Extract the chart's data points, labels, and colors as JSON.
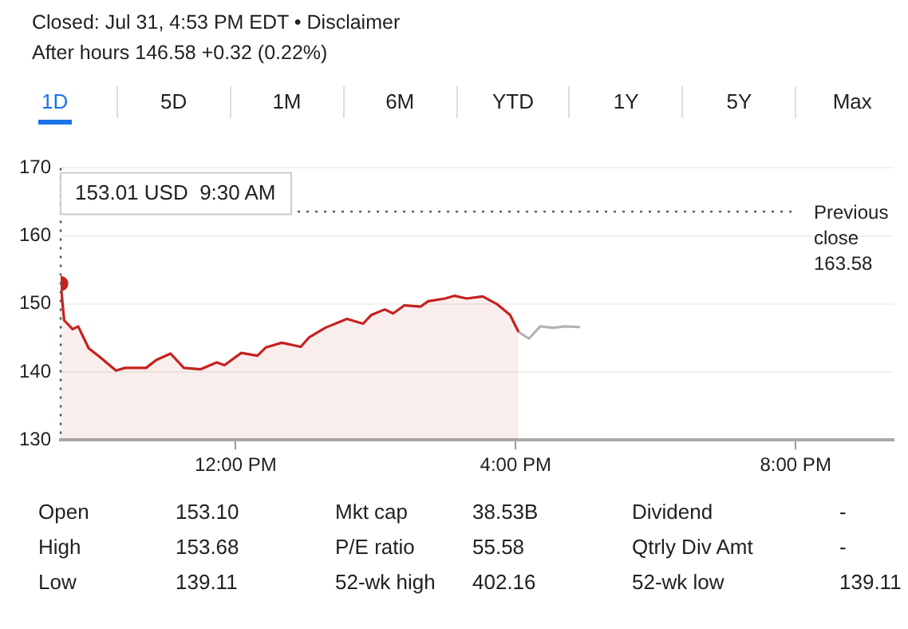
{
  "chart_data": {
    "type": "line",
    "title": "Closed: Jul 31, 4:53 PM EDT • Disclaimer",
    "subtitle": "After hours 146.58 +0.32 (0.22%)",
    "annotations": [
      "153.01 USD  9:30 AM",
      "1D",
      "5D",
      "1M",
      "6M",
      "YTD",
      "1Y",
      "5Y",
      "Max",
      "Open",
      "153.10",
      "Mkt cap",
      "38.53B",
      "Dividend",
      "-",
      "High",
      "153.68",
      "P/E ratio",
      "55.58",
      "Qtrly Div Amt",
      "-",
      "Low",
      "139.11",
      "52-wk high",
      "402.16",
      "52-wk low",
      "139.11"
    ],
    "series": [
      {
        "type": "area",
        "color": "#c5221f",
        "x": [
          9.5,
          9.55,
          9.67,
          9.75,
          9.9,
          10.06,
          10.29,
          10.42,
          10.72,
          10.87,
          11.07,
          11.26,
          11.5,
          11.73,
          11.84,
          12.08,
          12.31,
          12.43,
          12.66,
          12.93,
          13.05,
          13.28,
          13.59,
          13.82,
          13.94,
          14.13,
          14.25,
          14.41,
          14.64,
          14.75,
          14.99,
          15.13,
          15.3,
          15.53,
          15.73,
          15.92,
          16.04
        ],
        "values": [
          153,
          147.6,
          146.3,
          146.7,
          143.5,
          142.2,
          140.2,
          140.6,
          140.6,
          141.8,
          142.7,
          140.6,
          140.4,
          141.4,
          141,
          142.8,
          142.4,
          143.6,
          144.3,
          143.7,
          145.1,
          146.5,
          147.8,
          147.1,
          148.4,
          149.2,
          148.6,
          149.8,
          149.6,
          150.4,
          150.8,
          151.2,
          150.8,
          151.1,
          150,
          148.4,
          145.9
        ]
      },
      {
        "type": "line",
        "color": "#b3b3b3",
        "x": [
          16.04,
          16.19,
          16.35,
          16.54,
          16.7,
          16.92
        ],
        "values": [
          145.9,
          144.9,
          146.7,
          146.5,
          146.7,
          146.6
        ]
      }
    ],
    "xlim": [
      9.5,
      21.4
    ],
    "xticks": [
      {
        "value": 12,
        "label": "12:00 PM"
      },
      {
        "value": 16,
        "label": "4:00 PM"
      },
      {
        "value": 20,
        "label": "8:00 PM"
      }
    ],
    "ylim": [
      130,
      170
    ],
    "yticks": [
      130,
      140,
      150,
      160,
      170
    ],
    "grid": "y",
    "legend": false,
    "line_style": "solid",
    "ref_lines": [
      {
        "axis": "y",
        "value": 163.58,
        "label": "Previous close 163.58",
        "line_style": "dotted",
        "color": "#555555"
      },
      {
        "axis": "x",
        "value": 9.5,
        "line_style": "dotted",
        "color": "#555555"
      }
    ]
  }
}
